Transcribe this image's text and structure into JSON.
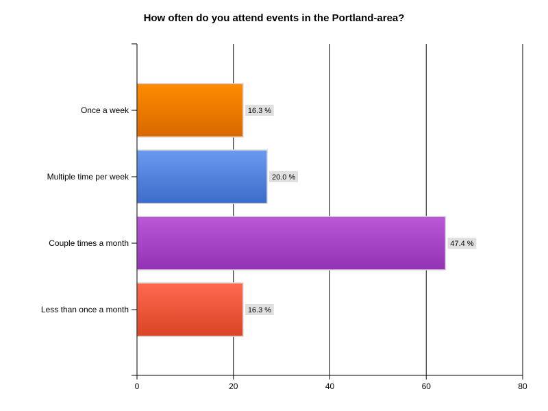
{
  "chart_data": {
    "type": "bar",
    "orientation": "horizontal",
    "title": "How often do you attend events in the Portland-area?",
    "xlabel": "",
    "ylabel": "",
    "xlim": [
      0,
      80
    ],
    "x_ticks": [
      "0",
      "20",
      "40",
      "60",
      "80"
    ],
    "grid": true,
    "categories": [
      "Once a week",
      "Multiple time per week",
      "Couple times a month",
      "Less than once a month"
    ],
    "values": [
      22,
      27,
      64,
      22
    ],
    "labels": [
      "16.3 %",
      "20.0 %",
      "47.4 %",
      "16.3 %"
    ],
    "colors": [
      {
        "top": "#ff8c00",
        "bottom": "#d86800"
      },
      {
        "top": "#6a9af0",
        "bottom": "#3b6cc8"
      },
      {
        "top": "#ba58d8",
        "bottom": "#9232b4"
      },
      {
        "top": "#ff6a50",
        "bottom": "#d84424"
      }
    ]
  }
}
